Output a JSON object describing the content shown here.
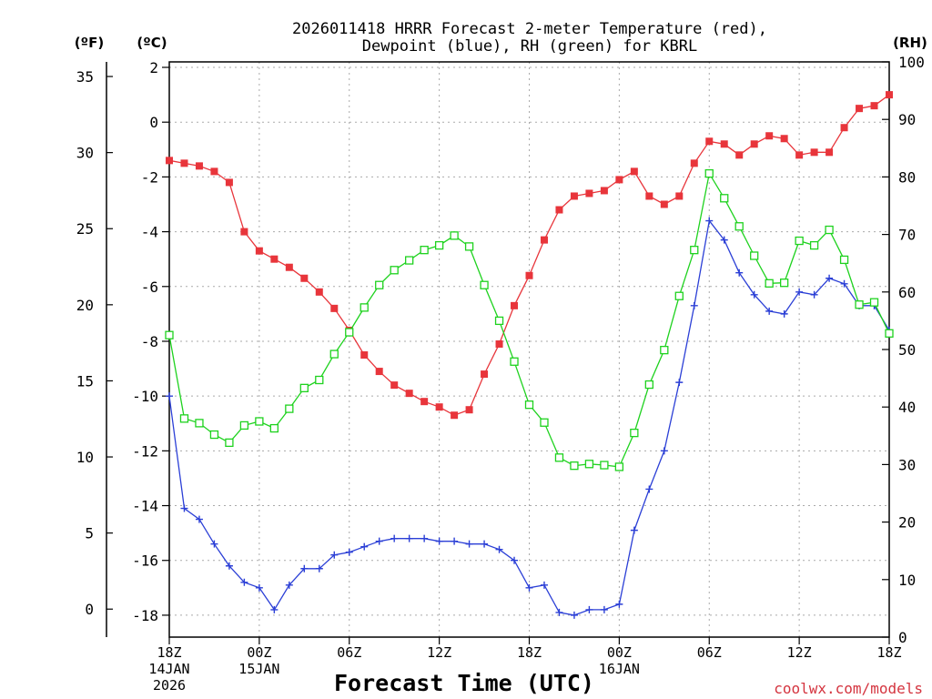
{
  "chart_data": {
    "type": "line",
    "title_line1": "2026011418 HRRR Forecast 2-meter Temperature (red),",
    "title_line2": "Dewpoint (blue), RH (green) for KBRL",
    "xlabel": "Forecast Time (UTC)",
    "unit_labels": {
      "fahrenheit": "(ºF)",
      "celsius": "(ºC)",
      "rh": "(RH)"
    },
    "credit": "coolwx.com/models",
    "x_range_hours": [
      0,
      48
    ],
    "celsius_range": [
      -18.8,
      2.2
    ],
    "rh_range": [
      0,
      100
    ],
    "celsius_ticks": [
      "2",
      "0",
      "-2",
      "-4",
      "-6",
      "-8",
      "-10",
      "-12",
      "-14",
      "-16",
      "-18"
    ],
    "celsius_tick_values": [
      2,
      0,
      -2,
      -4,
      -6,
      -8,
      -10,
      -12,
      -14,
      -16,
      -18
    ],
    "fahrenheit_ticks": [
      "35",
      "30",
      "25",
      "20",
      "15",
      "10",
      "5",
      "0"
    ],
    "fahrenheit_tick_values": [
      35,
      30,
      25,
      20,
      15,
      10,
      5,
      0
    ],
    "rh_ticks": [
      "100",
      "90",
      "80",
      "70",
      "60",
      "50",
      "40",
      "30",
      "20",
      "10",
      "0"
    ],
    "rh_tick_values": [
      100,
      90,
      80,
      70,
      60,
      50,
      40,
      30,
      20,
      10,
      0
    ],
    "x_ticks": [
      {
        "hour": 0,
        "lines": [
          "18Z",
          "14JAN",
          "2026"
        ]
      },
      {
        "hour": 6,
        "lines": [
          "00Z",
          "15JAN"
        ]
      },
      {
        "hour": 12,
        "lines": [
          "06Z"
        ]
      },
      {
        "hour": 18,
        "lines": [
          "12Z"
        ]
      },
      {
        "hour": 24,
        "lines": [
          "18Z"
        ]
      },
      {
        "hour": 30,
        "lines": [
          "00Z",
          "16JAN"
        ]
      },
      {
        "hour": 36,
        "lines": [
          "06Z"
        ]
      },
      {
        "hour": 42,
        "lines": [
          "12Z"
        ]
      },
      {
        "hour": 48,
        "lines": [
          "18Z"
        ]
      }
    ],
    "series": [
      {
        "name": "2-meter Temperature",
        "unit": "C",
        "axis": "celsius",
        "color": "#e8353b",
        "marker": "filled-square",
        "values": [
          -1.4,
          -1.5,
          -1.6,
          -1.8,
          -2.2,
          -4.0,
          -4.7,
          -5.0,
          -5.3,
          -5.7,
          -6.2,
          -6.8,
          -7.6,
          -8.5,
          -9.1,
          -9.6,
          -9.9,
          -10.2,
          -10.4,
          -10.7,
          -10.5,
          -9.2,
          -8.1,
          -6.7,
          -5.6,
          -4.3,
          -3.2,
          -2.7,
          -2.6,
          -2.5,
          -2.1,
          -1.8,
          -2.7,
          -3.0,
          -2.7,
          -1.5,
          -0.7,
          -0.8,
          -1.2,
          -0.8,
          -0.5,
          -0.6,
          -1.2,
          -1.1,
          -1.1,
          -0.2,
          0.5,
          0.6,
          1.0
        ]
      },
      {
        "name": "Dewpoint",
        "unit": "C",
        "axis": "celsius",
        "color": "#2b3fd6",
        "marker": "plus",
        "values": [
          -10.0,
          -14.1,
          -14.5,
          -15.4,
          -16.2,
          -16.8,
          -17.0,
          -17.8,
          -16.9,
          -16.3,
          -16.3,
          -15.8,
          -15.7,
          -15.5,
          -15.3,
          -15.2,
          -15.2,
          -15.2,
          -15.3,
          -15.3,
          -15.4,
          -15.4,
          -15.6,
          -16.0,
          -17.0,
          -16.9,
          -17.9,
          -18.0,
          -17.8,
          -17.8,
          -17.6,
          -14.9,
          -13.4,
          -12.0,
          -9.5,
          -6.7,
          -3.6,
          -4.3,
          -5.5,
          -6.3,
          -6.9,
          -7.0,
          -6.2,
          -6.3,
          -5.7,
          -5.9,
          -6.7,
          -6.7,
          -7.6
        ]
      },
      {
        "name": "RH",
        "unit": "%",
        "axis": "rh",
        "color": "#1ed21e",
        "marker": "open-square",
        "values": [
          52.5,
          38.0,
          37.2,
          35.2,
          33.8,
          36.8,
          37.5,
          36.3,
          39.7,
          43.3,
          44.7,
          49.2,
          53.0,
          57.3,
          61.2,
          63.8,
          65.5,
          67.3,
          68.1,
          69.8,
          67.9,
          61.2,
          55.0,
          47.9,
          40.4,
          37.3,
          31.2,
          29.8,
          30.1,
          29.9,
          29.6,
          35.5,
          43.9,
          49.9,
          59.3,
          67.3,
          80.6,
          76.3,
          71.4,
          66.3,
          61.5,
          61.6,
          68.9,
          68.1,
          70.8,
          65.6,
          57.8,
          58.2,
          52.8
        ]
      }
    ]
  }
}
